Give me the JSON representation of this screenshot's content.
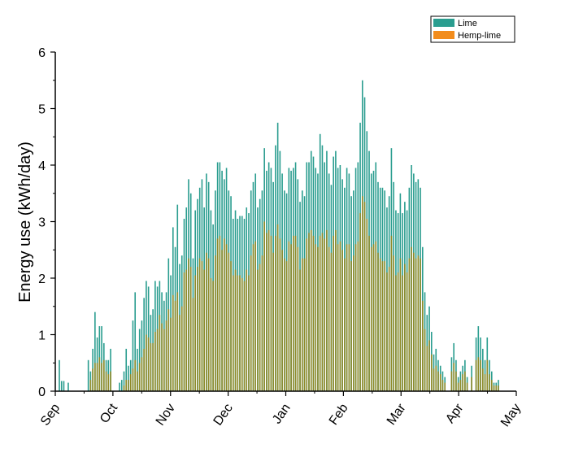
{
  "chart_data": {
    "type": "bar",
    "title": "",
    "ylabel": "Energy use (kWh/day)",
    "xlabel": "",
    "ylim": [
      0,
      6
    ],
    "yticks": [
      0,
      1,
      2,
      3,
      4,
      5,
      6
    ],
    "xticks": [
      "Sep",
      "Oct",
      "Nov",
      "Dec",
      "Jan",
      "Feb",
      "Mar",
      "Apr",
      "May"
    ],
    "grid": false,
    "legend": "top-right",
    "colors": {
      "lime": "#2a9d8f",
      "hemp_lime": "#f28c1c",
      "overlap": "#8f8a28"
    },
    "series": [
      {
        "name": "Lime",
        "values": [
          0.55,
          0.18,
          0.18,
          0,
          0.15,
          0,
          0,
          0,
          0,
          0,
          0,
          0,
          0,
          0.55,
          0.35,
          0.75,
          1.4,
          0.95,
          1.15,
          1.15,
          0.85,
          0.55,
          0.55,
          0.75,
          0,
          0,
          0,
          0.15,
          0.2,
          0.35,
          0.75,
          0.45,
          0.55,
          1.25,
          1.75,
          0.75,
          1.1,
          1.25,
          1.65,
          1.95,
          1.85,
          1.35,
          1.45,
          1.95,
          1.85,
          1.95,
          1.75,
          1.6,
          1.75,
          2.35,
          2.05,
          2.9,
          2.55,
          3.3,
          2.25,
          2.4,
          3.05,
          3.25,
          3.75,
          3.5,
          2.35,
          3.2,
          3.4,
          3.6,
          3.75,
          3.25,
          3.85,
          3.7,
          3.2,
          2.95,
          3.55,
          4.05,
          4.05,
          3.9,
          3.75,
          3.95,
          3.55,
          3.45,
          3.05,
          3.2,
          3.05,
          3.1,
          3.1,
          3.05,
          3.25,
          3.15,
          3.55,
          3.7,
          3.85,
          3.25,
          3.4,
          3.55,
          4.3,
          3.9,
          4.05,
          3.95,
          3.7,
          4.35,
          4.75,
          4.25,
          3.85,
          3.55,
          3.5,
          3.95,
          3.9,
          3.95,
          4.05,
          3.75,
          3.35,
          3.55,
          3.45,
          4.05,
          4.05,
          4.25,
          4.15,
          3.95,
          3.85,
          4.55,
          4.35,
          4.05,
          4.25,
          3.85,
          3.65,
          4.15,
          4.25,
          3.95,
          4.0,
          3.75,
          3.6,
          3.95,
          3.85,
          3.45,
          3.55,
          3.95,
          4.05,
          4.75,
          5.5,
          5.2,
          4.6,
          4.25,
          3.85,
          3.9,
          4.05,
          3.7,
          3.6,
          3.6,
          3.55,
          3.25,
          3.45,
          4.3,
          3.7,
          3.2,
          3.15,
          3.5,
          3.15,
          3.35,
          3.2,
          3.6,
          4.0,
          3.85,
          3.7,
          3.75,
          3.6,
          2.55,
          1.75,
          1.35,
          1.5,
          1.05,
          0.65,
          0.75,
          0.55,
          0.45,
          0.35,
          0.25,
          0,
          0,
          0.6,
          0.85,
          0.55,
          0.25,
          0.35,
          0.45,
          0.55,
          0.25,
          0,
          0.45,
          0,
          0.95,
          1.15,
          0.95,
          0.75,
          0.55,
          0.95,
          0.55,
          0.35,
          0.15,
          0.15,
          0.2
        ]
      },
      {
        "name": "Hemp-lime",
        "values": [
          0,
          0,
          0,
          0,
          0,
          0,
          0,
          0,
          0,
          0,
          0,
          0,
          0,
          0,
          0.2,
          0.4,
          0.5,
          0.5,
          0.6,
          0.5,
          0.55,
          0.35,
          0.3,
          0.35,
          0,
          0,
          0,
          0,
          0,
          0.1,
          0.2,
          0.2,
          0.3,
          0.4,
          0.55,
          0.35,
          0.5,
          0.6,
          0.75,
          1.0,
          0.95,
          0.85,
          0.85,
          1.05,
          1.1,
          1.35,
          1.2,
          1.1,
          1.25,
          1.45,
          1.3,
          1.7,
          1.6,
          1.75,
          1.35,
          1.5,
          2.1,
          2.15,
          2.35,
          2.2,
          1.65,
          2.05,
          2.2,
          2.35,
          2.3,
          2.15,
          2.45,
          2.35,
          2.0,
          1.95,
          2.4,
          2.7,
          2.75,
          2.5,
          2.7,
          2.6,
          2.45,
          2.3,
          2.05,
          2.15,
          2.05,
          2.05,
          2.0,
          1.95,
          2.15,
          2.05,
          2.4,
          2.6,
          2.65,
          2.15,
          2.25,
          2.4,
          3.0,
          2.8,
          2.85,
          2.75,
          2.45,
          2.75,
          2.95,
          2.7,
          2.5,
          2.35,
          2.3,
          2.65,
          2.6,
          2.75,
          2.75,
          2.55,
          2.15,
          2.35,
          2.35,
          2.7,
          2.8,
          2.85,
          2.75,
          2.6,
          2.55,
          2.75,
          2.8,
          2.7,
          2.85,
          2.55,
          2.45,
          2.75,
          2.85,
          2.6,
          2.65,
          2.5,
          2.35,
          2.6,
          2.6,
          2.3,
          2.4,
          2.6,
          2.65,
          3.15,
          3.45,
          3.35,
          3.05,
          2.75,
          2.55,
          2.6,
          2.65,
          2.45,
          2.35,
          2.3,
          2.3,
          2.1,
          2.2,
          2.75,
          2.4,
          2.05,
          2.1,
          2.35,
          2.05,
          2.25,
          2.1,
          2.35,
          2.55,
          2.45,
          2.35,
          2.4,
          2.35,
          1.6,
          1.1,
          0.8,
          0.9,
          0.65,
          0.4,
          0.45,
          0.35,
          0.3,
          0.2,
          0.15,
          0,
          0,
          0.35,
          0.5,
          0.35,
          0.15,
          0.2,
          0.3,
          0.35,
          0.15,
          0,
          0.25,
          0,
          0.55,
          0.6,
          0.55,
          0.4,
          0.3,
          0.55,
          0.3,
          0.2,
          0.1,
          0.1,
          0.1
        ]
      }
    ]
  }
}
